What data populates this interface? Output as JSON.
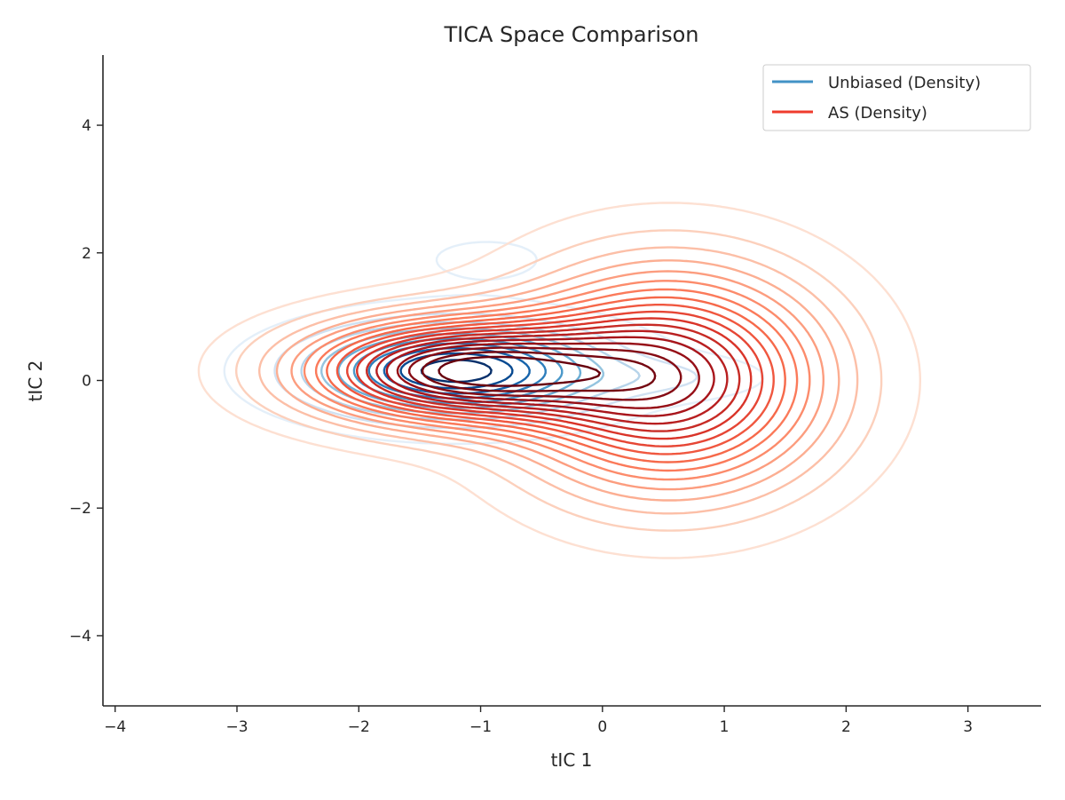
{
  "chart_data": {
    "type": "contour",
    "title": "TICA Space Comparison",
    "xlabel": "tIC 1",
    "ylabel": "tIC 2",
    "xlim": [
      -4.1,
      3.6
    ],
    "ylim": [
      -5.1,
      5.1
    ],
    "x_ticks": [
      -4,
      -3,
      -2,
      -1,
      0,
      1,
      2,
      3
    ],
    "y_ticks": [
      -4,
      -2,
      0,
      2,
      4
    ],
    "x_tick_labels": [
      "−4",
      "−3",
      "−2",
      "−1",
      "0",
      "1",
      "2",
      "3"
    ],
    "y_tick_labels": [
      "−4",
      "−2",
      "0",
      "2",
      "4"
    ],
    "grid": false,
    "legend_position": "top-right",
    "series": [
      {
        "name": "Unbiased (Density)",
        "kind": "density-contour",
        "legend_color": "#4292c6",
        "modes": [
          {
            "center": [
              -1.2,
              0.15
            ],
            "sx": 0.75,
            "sy": 0.45,
            "weight": 1.0
          },
          {
            "center": [
              0.55,
              0.05
            ],
            "sx": 0.5,
            "sy": 0.22,
            "weight": 0.12
          },
          {
            "center": [
              -0.95,
              1.9
            ],
            "sx": 0.45,
            "sy": 0.3,
            "weight": 0.06
          }
        ],
        "levels": 10,
        "level_colors": [
          "#e4eff9",
          "#d0e1f2",
          "#b7d4ea",
          "#94c4df",
          "#6aaed6",
          "#4a98c9",
          "#2e7ebc",
          "#1764ab",
          "#084a91",
          "#08306b"
        ]
      },
      {
        "name": "AS (Density)",
        "kind": "density-contour",
        "legend_color": "#ef3b2c",
        "modes": [
          {
            "center": [
              -1.2,
              0.15
            ],
            "sx": 0.85,
            "sy": 0.55,
            "weight": 1.0
          },
          {
            "center": [
              0.55,
              0.0
            ],
            "sx": 0.85,
            "sy": 1.15,
            "weight": 0.85
          }
        ],
        "levels": 18,
        "level_colors": [
          "#fde0d2",
          "#fcd0bc",
          "#fcbfa7",
          "#fcae92",
          "#fc9d7f",
          "#fc8b6b",
          "#fb7a5a",
          "#f6694a",
          "#f0573f",
          "#e64635",
          "#d93429",
          "#c72b25",
          "#b81f20",
          "#a8151b",
          "#960f17",
          "#850b14",
          "#740711",
          "#67000d"
        ]
      }
    ]
  }
}
